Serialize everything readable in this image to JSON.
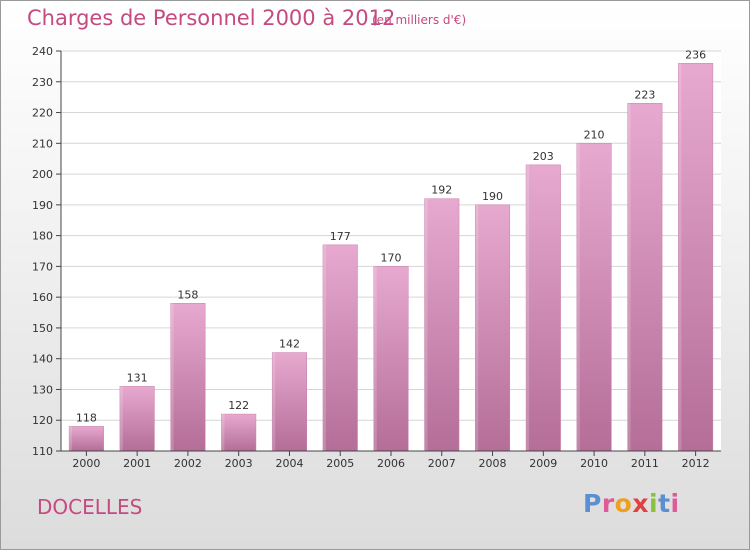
{
  "header": {
    "title": "Charges de Personnel 2000 à 2012",
    "subtitle": "(en milliers d'€)"
  },
  "footer": {
    "place": "DOCELLES",
    "brand": "Proxiti",
    "brand_colors": [
      "#5b8fd0",
      "#e05a9a",
      "#f0a020",
      "#e04040",
      "#8ac040",
      "#5b8fd0",
      "#e05a9a"
    ]
  },
  "chart_data": {
    "type": "bar",
    "title": "Charges de Personnel 2000 à 2012",
    "subtitle": "(en milliers d'€)",
    "xlabel": "",
    "ylabel": "",
    "categories": [
      "2000",
      "2001",
      "2002",
      "2003",
      "2004",
      "2005",
      "2006",
      "2007",
      "2008",
      "2009",
      "2010",
      "2011",
      "2012"
    ],
    "values": [
      118,
      131,
      158,
      122,
      142,
      177,
      170,
      192,
      190,
      203,
      210,
      223,
      236
    ],
    "ylim": [
      110,
      240
    ],
    "yticks": [
      110,
      120,
      130,
      140,
      150,
      160,
      170,
      180,
      190,
      200,
      210,
      220,
      230,
      240
    ],
    "grid": true,
    "data_labels": true,
    "bar_color": "#d98cb6"
  }
}
